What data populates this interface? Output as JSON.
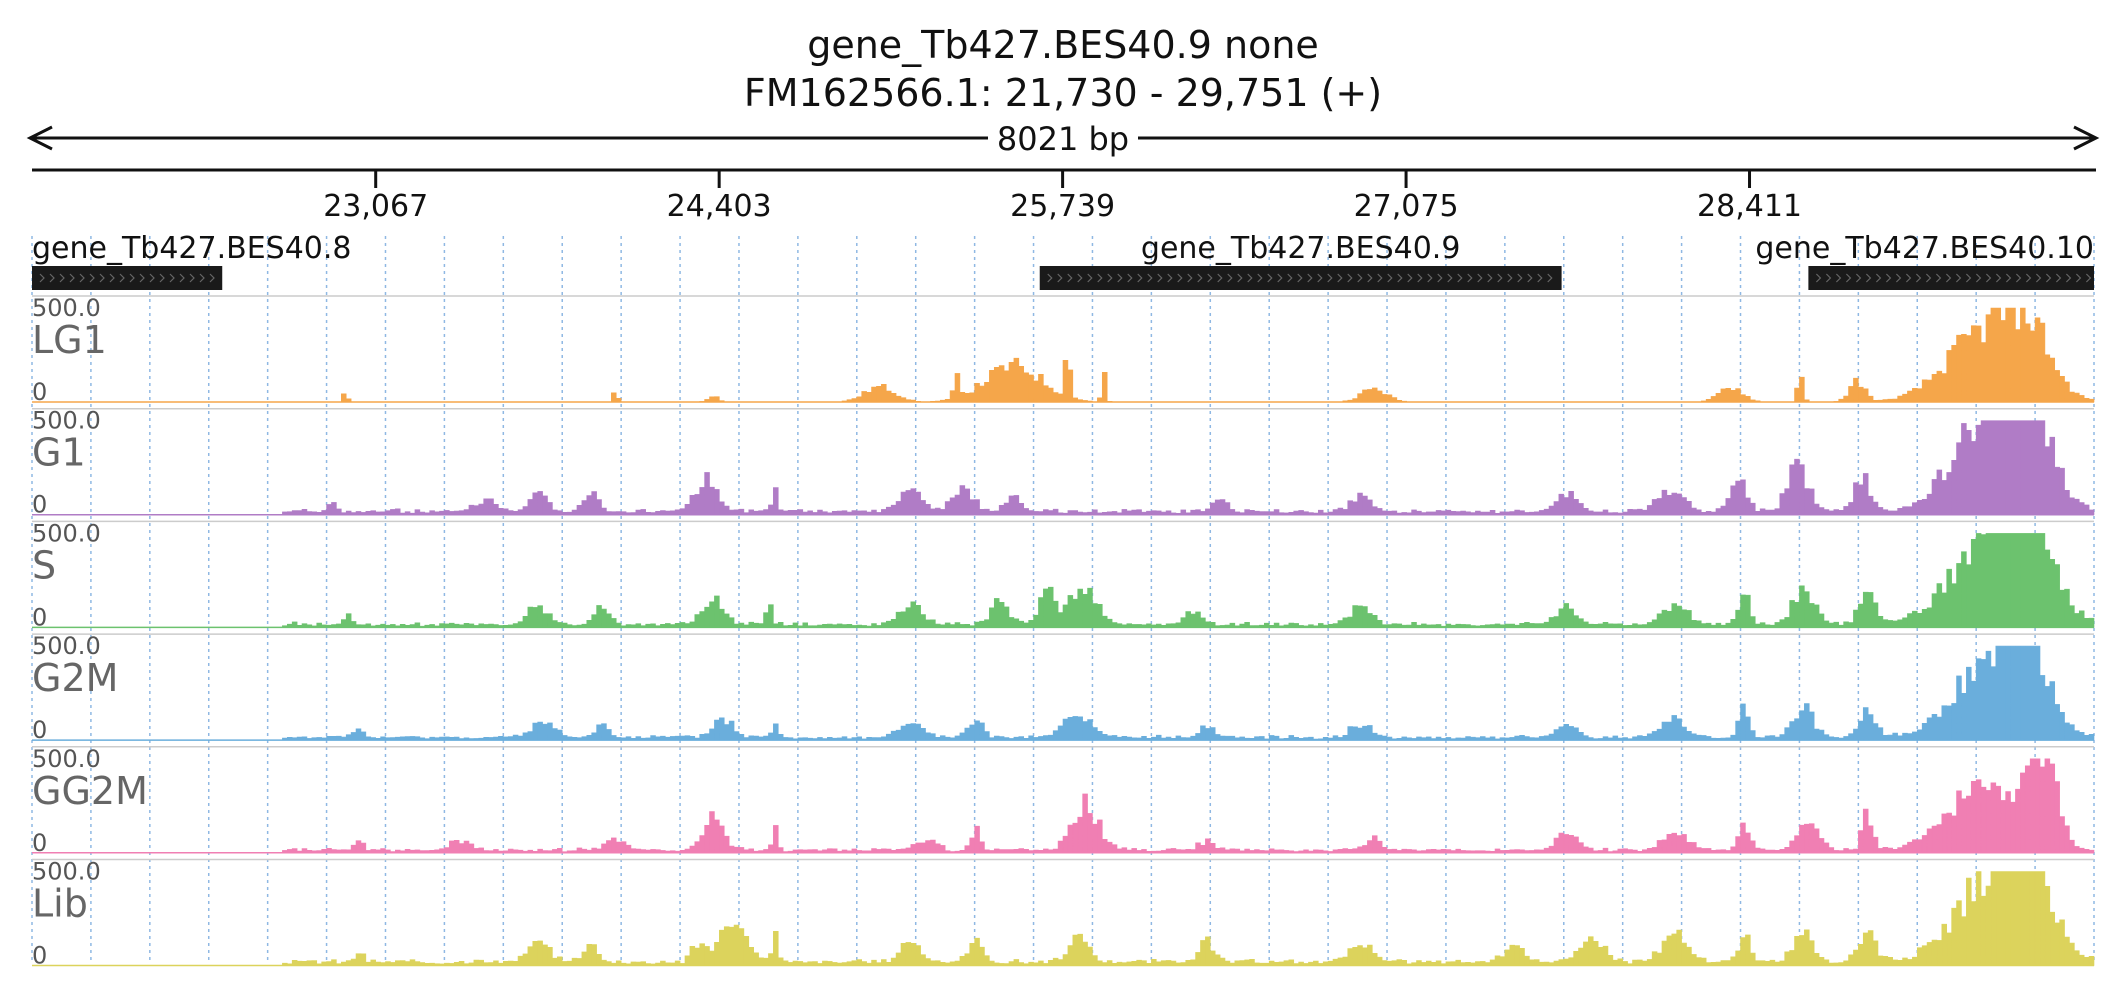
{
  "header": {
    "title": "gene_Tb427.BES40.9  none",
    "locus": "FM162566.1: 21,730 - 29,751 (+)",
    "span_label": "8021 bp"
  },
  "chart_data": {
    "type": "area",
    "region": {
      "chrom": "FM162566.1",
      "start": 21730,
      "end": 29751,
      "strand": "+"
    },
    "axis": {
      "ticks": [
        {
          "value": 23067,
          "label": "23,067"
        },
        {
          "value": 24403,
          "label": "24,403"
        },
        {
          "value": 25739,
          "label": "25,739"
        },
        {
          "value": 27075,
          "label": "27,075"
        },
        {
          "value": 28411,
          "label": "28,411"
        }
      ]
    },
    "genes": [
      {
        "name": "gene_Tb427.BES40.8",
        "start": 21730,
        "end": 22470,
        "strand": "+"
      },
      {
        "name": "gene_Tb427.BES40.9",
        "start": 25650,
        "end": 27680,
        "strand": "+"
      },
      {
        "name": "gene_Tb427.BES40.10",
        "start": 28640,
        "end": 29751,
        "strand": "+"
      }
    ],
    "tracks": [
      {
        "name": "LG1",
        "color": "#f5a64a",
        "max_label": "500.0",
        "min_label": "0",
        "max": 500,
        "seed": 11,
        "fill": 0.0,
        "peaks": [
          [
            22950,
            8,
            60
          ],
          [
            24000,
            10,
            55
          ],
          [
            24380,
            20,
            30
          ],
          [
            25030,
            60,
            80
          ],
          [
            25330,
            12,
            110
          ],
          [
            25550,
            110,
            190
          ],
          [
            25760,
            10,
            280
          ],
          [
            25900,
            8,
            150
          ],
          [
            26950,
            50,
            70
          ],
          [
            28340,
            45,
            80
          ],
          [
            28610,
            10,
            170
          ],
          [
            28830,
            30,
            110
          ],
          [
            29340,
            150,
            380
          ],
          [
            29500,
            80,
            260
          ]
        ]
      },
      {
        "name": "G1",
        "color": "#b07cc6",
        "max_label": "500.0",
        "min_label": "0",
        "max": 500,
        "seed": 23,
        "fill": 22,
        "peaks": [
          [
            22900,
            15,
            40
          ],
          [
            23500,
            40,
            60
          ],
          [
            23700,
            30,
            130
          ],
          [
            23900,
            30,
            110
          ],
          [
            24350,
            40,
            180
          ],
          [
            24620,
            10,
            150
          ],
          [
            25150,
            40,
            150
          ],
          [
            25350,
            40,
            120
          ],
          [
            25550,
            30,
            90
          ],
          [
            26350,
            30,
            70
          ],
          [
            26900,
            40,
            80
          ],
          [
            27700,
            40,
            90
          ],
          [
            28100,
            50,
            110
          ],
          [
            28370,
            30,
            180
          ],
          [
            28600,
            40,
            230
          ],
          [
            28850,
            30,
            190
          ],
          [
            29360,
            140,
            520
          ],
          [
            29500,
            80,
            380
          ]
        ]
      },
      {
        "name": "S",
        "color": "#6cc26e",
        "max_label": "500.0",
        "min_label": "0",
        "max": 500,
        "seed": 37,
        "fill": 20,
        "peaks": [
          [
            22960,
            15,
            40
          ],
          [
            23700,
            40,
            90
          ],
          [
            23950,
            30,
            90
          ],
          [
            24380,
            40,
            140
          ],
          [
            24600,
            10,
            130
          ],
          [
            25150,
            40,
            120
          ],
          [
            25500,
            30,
            140
          ],
          [
            25680,
            30,
            190
          ],
          [
            25820,
            50,
            200
          ],
          [
            26250,
            30,
            70
          ],
          [
            26900,
            40,
            100
          ],
          [
            27700,
            40,
            90
          ],
          [
            28120,
            50,
            110
          ],
          [
            28390,
            20,
            200
          ],
          [
            28620,
            40,
            190
          ],
          [
            28870,
            30,
            190
          ],
          [
            29360,
            150,
            490
          ],
          [
            29500,
            80,
            380
          ]
        ]
      },
      {
        "name": "G2M",
        "color": "#6aaedc",
        "max_label": "500.0",
        "min_label": "0",
        "max": 500,
        "seed": 41,
        "fill": 18,
        "peaks": [
          [
            23000,
            20,
            40
          ],
          [
            23720,
            40,
            90
          ],
          [
            23950,
            30,
            60
          ],
          [
            24420,
            40,
            90
          ],
          [
            24620,
            10,
            100
          ],
          [
            25150,
            40,
            90
          ],
          [
            25400,
            30,
            80
          ],
          [
            25800,
            50,
            120
          ],
          [
            26300,
            30,
            60
          ],
          [
            26900,
            40,
            70
          ],
          [
            27700,
            40,
            70
          ],
          [
            28120,
            50,
            90
          ],
          [
            28390,
            20,
            180
          ],
          [
            28620,
            40,
            150
          ],
          [
            28870,
            30,
            150
          ],
          [
            29360,
            140,
            430
          ],
          [
            29500,
            70,
            330
          ]
        ]
      },
      {
        "name": "GG2M",
        "color": "#f07fb3",
        "max_label": "500.0",
        "min_label": "0",
        "max": 500,
        "seed": 53,
        "fill": 18,
        "peaks": [
          [
            23000,
            20,
            40
          ],
          [
            23400,
            40,
            50
          ],
          [
            24000,
            40,
            50
          ],
          [
            24380,
            40,
            160
          ],
          [
            24620,
            10,
            150
          ],
          [
            25200,
            40,
            60
          ],
          [
            25400,
            20,
            110
          ],
          [
            25830,
            50,
            230
          ],
          [
            26300,
            30,
            50
          ],
          [
            26950,
            30,
            70
          ],
          [
            27700,
            40,
            80
          ],
          [
            28120,
            50,
            90
          ],
          [
            28390,
            20,
            140
          ],
          [
            28640,
            40,
            160
          ],
          [
            28870,
            20,
            190
          ],
          [
            29330,
            140,
            340
          ],
          [
            29550,
            50,
            480
          ]
        ]
      },
      {
        "name": "Lib",
        "color": "#dcd35c",
        "max_label": "500.0",
        "min_label": "0",
        "max": 500,
        "seed": 67,
        "fill": 24,
        "peaks": [
          [
            23000,
            20,
            40
          ],
          [
            23700,
            40,
            100
          ],
          [
            23900,
            30,
            90
          ],
          [
            24320,
            20,
            90
          ],
          [
            24450,
            60,
            180
          ],
          [
            24620,
            10,
            210
          ],
          [
            25150,
            40,
            110
          ],
          [
            25400,
            30,
            100
          ],
          [
            25800,
            40,
            120
          ],
          [
            26300,
            30,
            100
          ],
          [
            26900,
            40,
            110
          ],
          [
            27500,
            40,
            100
          ],
          [
            27800,
            50,
            120
          ],
          [
            28120,
            50,
            140
          ],
          [
            28390,
            20,
            170
          ],
          [
            28620,
            40,
            150
          ],
          [
            28870,
            30,
            180
          ],
          [
            29360,
            140,
            440
          ],
          [
            29500,
            80,
            350
          ]
        ]
      }
    ]
  }
}
